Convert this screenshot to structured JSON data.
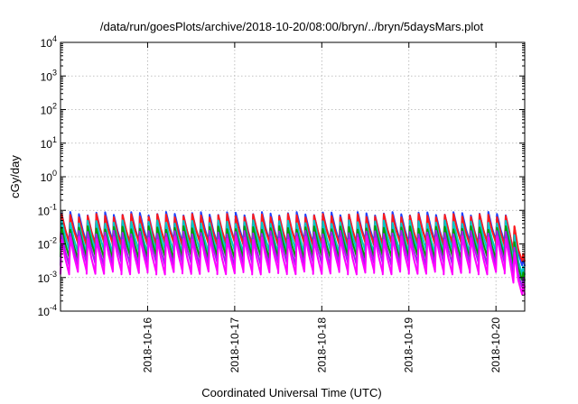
{
  "chart_data": {
    "type": "line",
    "title": "/data/run/goesPlots/archive/2018-10-20/08:00/bryn/../bryn/5daysMars.plot",
    "xlabel": "Coordinated Universal Time (UTC)",
    "ylabel": "cGy/day",
    "yscale": "log",
    "ylim": [
      0.0001,
      10000
    ],
    "xlim_days": [
      "2018-10-15",
      "2018-10-20 (≈07:50)"
    ],
    "x_tick_labels": [
      "2018-10-16",
      "2018-10-17",
      "2018-10-18",
      "2018-10-19",
      "2018-10-20"
    ],
    "y_tick_labels": [
      {
        "base": "10",
        "exp": "-4"
      },
      {
        "base": "10",
        "exp": "-3"
      },
      {
        "base": "10",
        "exp": "-2"
      },
      {
        "base": "10",
        "exp": "-1"
      },
      {
        "base": "10",
        "exp": "0"
      },
      {
        "base": "10",
        "exp": "1"
      },
      {
        "base": "10",
        "exp": "2"
      },
      {
        "base": "10",
        "exp": "3"
      },
      {
        "base": "10",
        "exp": "4"
      }
    ],
    "grid": true,
    "legend": "none",
    "pattern": "sawtooth, period ≈ 0.1 day",
    "series": [
      {
        "color": "#1f3fff",
        "peak": 0.08,
        "trough": 0.011,
        "end_value": 0.0022
      },
      {
        "color": "#ff1a1a",
        "peak": 0.07,
        "trough": 0.01,
        "end_value": 0.003
      },
      {
        "color": "#00c8c8",
        "peak": 0.045,
        "trough": 0.006,
        "end_value": 0.0012
      },
      {
        "color": "#00a000",
        "peak": 0.03,
        "trough": 0.004,
        "end_value": 0.0008
      },
      {
        "color": "#a020f0",
        "peak": 0.022,
        "trough": 0.0025,
        "end_value": 0.0005
      },
      {
        "color": "#ff00ff",
        "peak": 0.015,
        "trough": 0.0014,
        "end_value": 0.0003
      }
    ]
  }
}
